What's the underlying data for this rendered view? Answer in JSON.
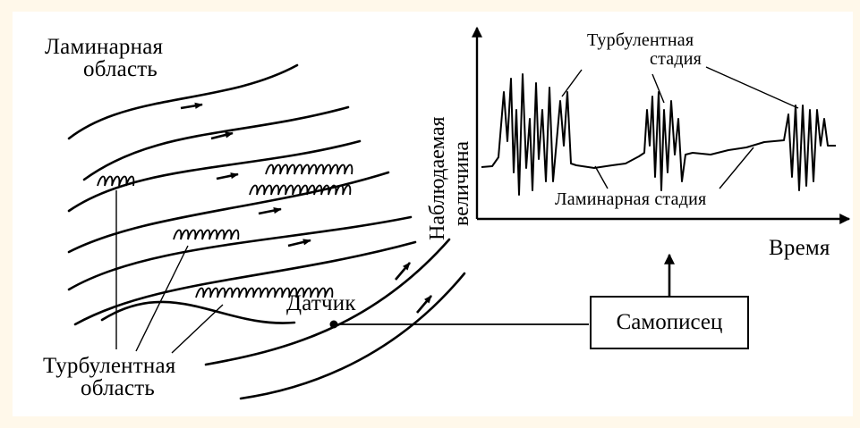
{
  "labels": {
    "laminar_region": [
      "Ламинарная",
      "область"
    ],
    "turbulent_region": [
      "Турбулентная",
      "область"
    ],
    "sensor": "Датчик",
    "recorder": "Самописец",
    "y_axis": [
      "Наблюдаемая",
      "величина"
    ],
    "x_axis": "Время",
    "turbulent_stage": [
      "Турбулентная",
      "стадия"
    ],
    "laminar_stage": "Ламинарная стадия"
  },
  "colors": {
    "background": "#fff8ea",
    "panel": "#ffffff",
    "ink": "#000000"
  },
  "icons": {
    "flow_arrowheads": "triangle-arrow",
    "axis_arrowheads": "triangle-arrow"
  }
}
